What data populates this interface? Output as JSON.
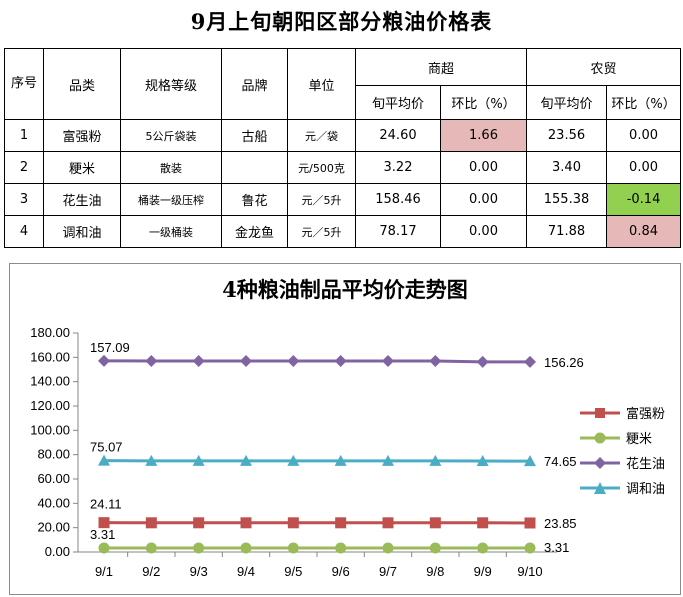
{
  "page_title": "9月上旬朝阳区部分粮油价格表",
  "table": {
    "headers": {
      "seq": "序号",
      "category": "品类",
      "spec": "规格等级",
      "brand": "品牌",
      "unit": "单位",
      "supermarket": "商超",
      "market": "农贸",
      "avg_price": "旬平均价",
      "ratio": "环比（%）"
    },
    "rows": [
      {
        "seq": "1",
        "category": "富强粉",
        "spec": "5公斤袋装",
        "brand": "古船",
        "unit": "元／袋",
        "super_avg": "24.60",
        "super_ratio": "1.66",
        "market_avg": "23.56",
        "market_ratio": "0.00"
      },
      {
        "seq": "2",
        "category": "粳米",
        "spec": "散装",
        "brand": "",
        "unit": "元/500克",
        "super_avg": "3.22",
        "super_ratio": "0.00",
        "market_avg": "3.40",
        "market_ratio": "0.00"
      },
      {
        "seq": "3",
        "category": "花生油",
        "spec": "桶装一级压榨",
        "brand": "鲁花",
        "unit": "元／5升",
        "super_avg": "158.46",
        "super_ratio": "0.00",
        "market_avg": "155.38",
        "market_ratio": "-0.14"
      },
      {
        "seq": "4",
        "category": "调和油",
        "spec": "一级桶装",
        "brand": "金龙鱼",
        "unit": "元／5升",
        "super_avg": "78.17",
        "super_ratio": "0.00",
        "market_avg": "71.88",
        "market_ratio": "0.84"
      }
    ],
    "highlight_colors": {
      "pink": "#e6b8b7",
      "green": "#92d050"
    }
  },
  "chart_data": {
    "type": "line",
    "title": "4种粮油制品平均价走势图",
    "categories": [
      "9/1",
      "9/2",
      "9/3",
      "9/4",
      "9/5",
      "9/6",
      "9/7",
      "9/8",
      "9/9",
      "9/10"
    ],
    "ylim": [
      0,
      180
    ],
    "yticks": [
      "0.00",
      "20.00",
      "40.00",
      "60.00",
      "80.00",
      "100.00",
      "120.00",
      "140.00",
      "160.00",
      "180.00"
    ],
    "grid": false,
    "legend_position": "right",
    "series": [
      {
        "name": "富强粉",
        "color": "#c0504d",
        "marker": "square",
        "values": [
          24.11,
          24.0,
          24.0,
          24.0,
          24.0,
          24.0,
          24.0,
          24.0,
          24.0,
          23.85
        ],
        "start_label": "24.11",
        "end_label": "23.85"
      },
      {
        "name": "粳米",
        "color": "#9bbb59",
        "marker": "circle",
        "values": [
          3.31,
          3.31,
          3.31,
          3.31,
          3.31,
          3.31,
          3.31,
          3.31,
          3.31,
          3.31
        ],
        "start_label": "3.31",
        "end_label": "3.31"
      },
      {
        "name": "花生油",
        "color": "#8064a2",
        "marker": "diamond",
        "values": [
          157.09,
          157.0,
          157.0,
          157.0,
          157.0,
          157.0,
          157.0,
          157.0,
          156.3,
          156.26
        ],
        "start_label": "157.09",
        "end_label": "156.26"
      },
      {
        "name": "调和油",
        "color": "#4bacc6",
        "marker": "triangle",
        "values": [
          75.07,
          74.9,
          74.9,
          74.9,
          74.9,
          74.9,
          74.9,
          74.9,
          74.8,
          74.65
        ],
        "start_label": "75.07",
        "end_label": "74.65"
      }
    ]
  }
}
